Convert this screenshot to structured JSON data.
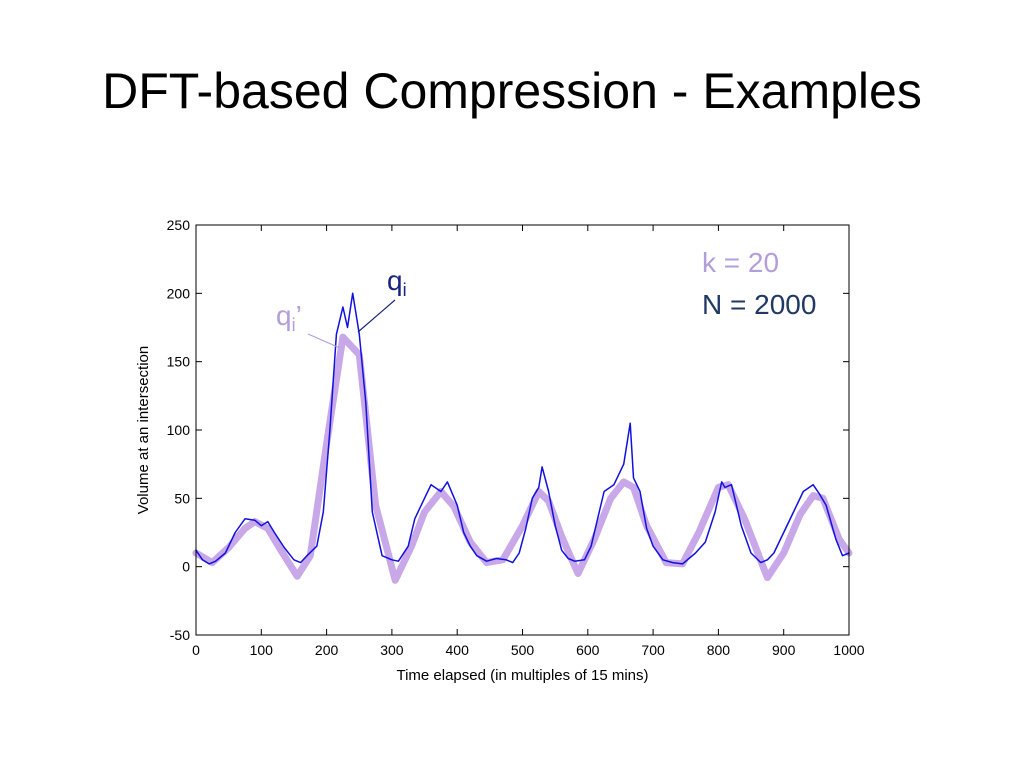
{
  "slide": {
    "title": "DFT-based Compression - Examples"
  },
  "chart_data": {
    "type": "line",
    "title": "",
    "xlabel": "Time elapsed (in multiples of 15 mins)",
    "ylabel": "Volume at an intersection",
    "xlim": [
      0,
      1000
    ],
    "ylim": [
      -50,
      250
    ],
    "xticks": [
      0,
      100,
      200,
      300,
      400,
      500,
      600,
      700,
      800,
      900,
      1000
    ],
    "yticks": [
      -50,
      0,
      50,
      100,
      150,
      200,
      250
    ],
    "grid": false,
    "series": [
      {
        "key": "approx",
        "color": "#c8a8e8",
        "x": [
          0,
          25,
          50,
          75,
          90,
          110,
          130,
          155,
          175,
          200,
          225,
          250,
          275,
          305,
          330,
          350,
          375,
          395,
          420,
          445,
          470,
          500,
          525,
          540,
          560,
          585,
          610,
          635,
          655,
          670,
          690,
          720,
          745,
          770,
          800,
          815,
          840,
          875,
          900,
          925,
          945,
          960,
          985,
          1000
        ],
        "values": [
          10,
          3,
          14,
          28,
          33,
          28,
          12,
          -7,
          8,
          90,
          168,
          155,
          45,
          -10,
          15,
          40,
          55,
          44,
          18,
          3,
          5,
          30,
          55,
          48,
          22,
          -5,
          20,
          50,
          62,
          58,
          30,
          3,
          2,
          25,
          58,
          60,
          35,
          -8,
          10,
          38,
          52,
          50,
          20,
          10
        ]
      },
      {
        "key": "original",
        "color": "#1010e0",
        "x": [
          0,
          10,
          20,
          30,
          45,
          60,
          75,
          90,
          100,
          110,
          120,
          135,
          150,
          160,
          170,
          185,
          195,
          205,
          215,
          225,
          232,
          240,
          250,
          260,
          270,
          285,
          300,
          310,
          325,
          335,
          350,
          360,
          375,
          385,
          400,
          410,
          420,
          430,
          445,
          460,
          475,
          485,
          495,
          505,
          515,
          525,
          530,
          540,
          550,
          560,
          570,
          580,
          595,
          605,
          615,
          625,
          640,
          655,
          665,
          670,
          680,
          690,
          700,
          715,
          730,
          745,
          755,
          765,
          780,
          795,
          805,
          810,
          820,
          835,
          850,
          865,
          875,
          885,
          900,
          915,
          930,
          945,
          955,
          965,
          980,
          990,
          1000
        ],
        "values": [
          12,
          5,
          2,
          4,
          10,
          25,
          35,
          34,
          30,
          33,
          25,
          14,
          5,
          3,
          8,
          15,
          40,
          100,
          170,
          190,
          175,
          200,
          170,
          120,
          40,
          8,
          5,
          4,
          15,
          35,
          50,
          60,
          55,
          62,
          45,
          25,
          15,
          8,
          4,
          6,
          5,
          3,
          10,
          28,
          50,
          58,
          73,
          55,
          30,
          12,
          6,
          4,
          5,
          15,
          35,
          55,
          60,
          75,
          105,
          65,
          55,
          28,
          15,
          5,
          3,
          2,
          6,
          10,
          18,
          40,
          62,
          58,
          60,
          30,
          10,
          3,
          5,
          10,
          25,
          40,
          55,
          60,
          53,
          45,
          20,
          8,
          10
        ]
      }
    ],
    "annotations": {
      "original_label": {
        "base": "q",
        "sub": "i",
        "color": "#1a237e"
      },
      "approx_label": {
        "base": "q",
        "sub": "i",
        "suffix": "’",
        "color": "#b39ddb"
      },
      "k_text": "k = 20",
      "k_color": "#b39ddb",
      "n_text": "N = 2000",
      "n_color": "#1f3864"
    }
  }
}
